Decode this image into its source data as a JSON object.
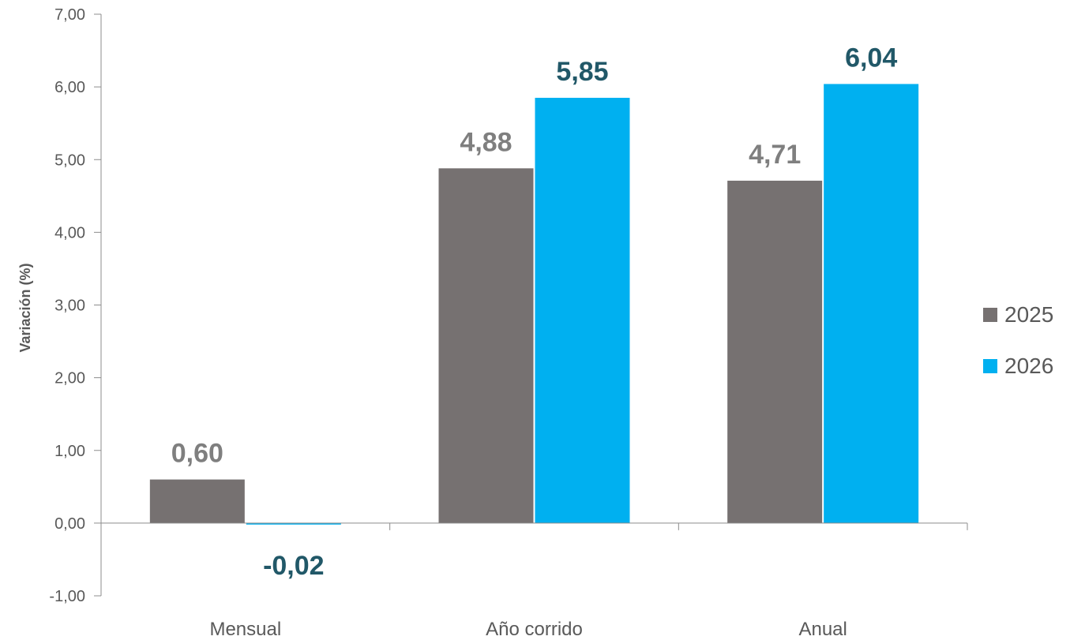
{
  "chart_data": {
    "type": "bar",
    "title": "",
    "xlabel": "",
    "ylabel": "Variación (%)",
    "ylim": [
      -1,
      7
    ],
    "yticks": [
      "-1,00",
      "0,00",
      "1,00",
      "2,00",
      "3,00",
      "4,00",
      "5,00",
      "6,00",
      "7,00"
    ],
    "categories": [
      "Mensual",
      "Año corrido",
      "Anual"
    ],
    "series": [
      {
        "name": "2025",
        "color": "#767171",
        "label_color": "#7f7f7f",
        "values": [
          0.6,
          4.88,
          4.71
        ],
        "labels": [
          "0,60",
          "4,88",
          "4,71"
        ]
      },
      {
        "name": "2026",
        "color": "#00b0f0",
        "label_color": "#215868",
        "values": [
          -0.02,
          5.85,
          6.04
        ],
        "labels": [
          "-0,02",
          "5,85",
          "6,04"
        ]
      }
    ],
    "legend": "right",
    "grid": false
  }
}
